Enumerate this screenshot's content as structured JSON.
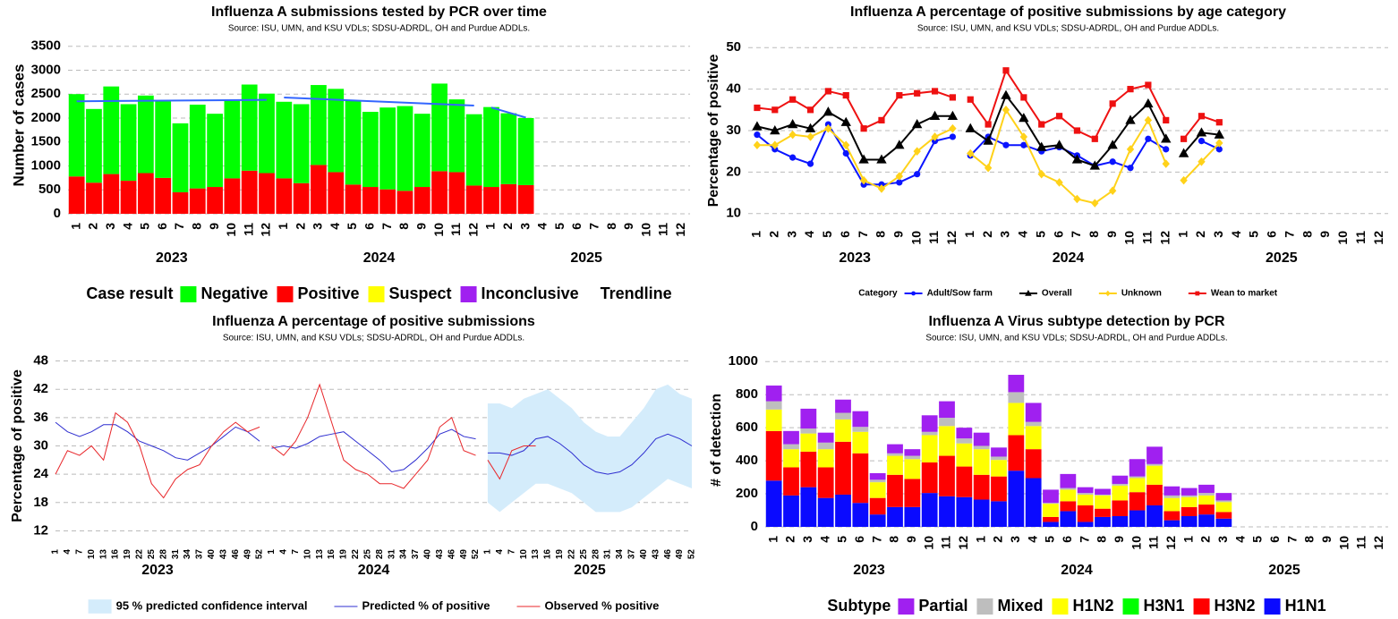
{
  "chart_data": [
    {
      "type": "stacked_bar",
      "title": "Influenza A submissions tested by PCR over time",
      "subtitle": "Source: ISU, UMN, and KSU VDLs; SDSU-ADRDL, OH and Purdue ADDLs.",
      "y_label": "Number of cases",
      "categories": [
        "1",
        "2",
        "3",
        "4",
        "5",
        "6",
        "7",
        "8",
        "9",
        "10",
        "11",
        "12",
        "1",
        "2",
        "3",
        "4",
        "5",
        "6",
        "7",
        "8",
        "9",
        "10",
        "11",
        "12",
        "1",
        "2",
        "3",
        "4",
        "5",
        "6",
        "7",
        "8",
        "9",
        "10",
        "11",
        "12"
      ],
      "groups": [
        "2023",
        "2024",
        "2025"
      ],
      "ylim": [
        0,
        3700
      ],
      "yticks": [
        0,
        500,
        1000,
        1500,
        2000,
        2500,
        3000,
        3500
      ],
      "grid": true,
      "legend": "bottom",
      "legend_title": "Case result",
      "series": [
        {
          "name": "Negative",
          "color": "#00ff00",
          "values": [
            1720,
            1540,
            1830,
            1600,
            1620,
            1600,
            1440,
            1750,
            1530,
            1620,
            1800,
            1660,
            1600,
            1650,
            1670,
            1740,
            1760,
            1570,
            1710,
            1770,
            1530,
            1830,
            1520,
            1490,
            1670,
            1480,
            1400,
            null,
            null,
            null,
            null,
            null,
            null,
            null,
            null,
            null
          ]
        },
        {
          "name": "Positive",
          "color": "#ff0000",
          "values": [
            780,
            650,
            830,
            690,
            850,
            750,
            450,
            530,
            560,
            740,
            900,
            850,
            740,
            640,
            1020,
            870,
            610,
            560,
            510,
            480,
            560,
            890,
            870,
            590,
            560,
            620,
            600,
            null,
            null,
            null,
            null,
            null,
            null,
            null,
            null,
            null
          ]
        },
        {
          "name": "Suspect",
          "color": "#ffff00",
          "values": [
            0,
            0,
            0,
            0,
            0,
            0,
            0,
            0,
            0,
            0,
            0,
            0,
            0,
            0,
            0,
            0,
            0,
            0,
            0,
            0,
            0,
            0,
            0,
            0,
            0,
            0,
            0,
            null,
            null,
            null,
            null,
            null,
            null,
            null,
            null,
            null
          ]
        },
        {
          "name": "Inconclusive",
          "color": "#a020f0",
          "values": [
            0,
            0,
            0,
            0,
            0,
            0,
            0,
            0,
            0,
            0,
            0,
            0,
            0,
            0,
            0,
            0,
            0,
            0,
            0,
            0,
            0,
            0,
            0,
            0,
            0,
            0,
            0,
            null,
            null,
            null,
            null,
            null,
            null,
            null,
            null,
            null
          ]
        }
      ],
      "trendline": {
        "name": "Trendline",
        "color": "#3366ff",
        "segments": [
          [
            2350,
            2380
          ],
          [
            2430,
            2260
          ],
          [
            2220,
            2010
          ]
        ]
      }
    },
    {
      "type": "line",
      "title": "Influenza A percentage of positive submissions by age category",
      "subtitle": "Source: ISU, UMN, and KSU VDLs; SDSU-ADRDL, OH and Purdue ADDLs.",
      "y_label": "Percentage of positive",
      "categories": [
        "1",
        "2",
        "3",
        "4",
        "5",
        "6",
        "7",
        "8",
        "9",
        "10",
        "11",
        "12",
        "1",
        "2",
        "3",
        "4",
        "5",
        "6",
        "7",
        "8",
        "9",
        "10",
        "11",
        "12",
        "1",
        "2",
        "3",
        "4",
        "5",
        "6",
        "7",
        "8",
        "9",
        "10",
        "11",
        "12"
      ],
      "groups": [
        "2023",
        "2024",
        "2025"
      ],
      "ylim": [
        8,
        52
      ],
      "yticks": [
        10,
        20,
        30,
        40,
        50
      ],
      "grid": true,
      "legend": "bottom",
      "legend_title": "Category",
      "series": [
        {
          "name": "Adult/Sow farm",
          "color": "#0a14ff",
          "marker": "circle",
          "values": [
            29,
            25.5,
            23.5,
            22,
            31.5,
            24.5,
            17,
            17,
            17.5,
            19.5,
            27.5,
            28.5,
            24,
            28.5,
            26.5,
            26.5,
            25,
            26,
            24,
            21.5,
            22.5,
            21,
            28,
            25.5,
            null,
            27.5,
            25.5,
            null,
            null,
            null,
            null,
            null,
            null,
            null,
            null,
            null
          ]
        },
        {
          "name": "Overall",
          "color": "#000000",
          "marker": "triangle",
          "values": [
            31,
            30,
            31.5,
            30.5,
            34.5,
            32,
            23,
            23,
            26.5,
            31.5,
            33.5,
            33.5,
            30.5,
            27.5,
            38.5,
            33,
            26,
            26.5,
            23,
            21.5,
            26.5,
            32.5,
            36.5,
            28,
            24.5,
            29.5,
            29,
            null,
            null,
            null,
            null,
            null,
            null,
            null,
            null,
            null
          ]
        },
        {
          "name": "Unknown",
          "color": "#ffd21a",
          "marker": "diamond",
          "values": [
            26.5,
            26.5,
            29,
            28.5,
            30.5,
            26.5,
            18,
            16,
            19,
            25,
            28.5,
            30.5,
            24.5,
            21,
            35,
            28.5,
            19.5,
            17.5,
            13.5,
            12.5,
            15.5,
            25.5,
            32.5,
            22,
            18,
            22.5,
            27,
            null,
            null,
            null,
            null,
            null,
            null,
            null,
            null,
            null
          ]
        },
        {
          "name": "Wean to market",
          "color": "#ee1111",
          "marker": "square",
          "values": [
            35.5,
            35,
            37.5,
            35,
            39.5,
            38.5,
            30.5,
            32.5,
            38.5,
            39,
            39.5,
            38,
            37.5,
            31.5,
            44.5,
            38,
            31.5,
            33.5,
            30,
            28,
            36.5,
            40,
            41,
            32.5,
            28,
            33.5,
            32,
            null,
            null,
            null,
            null,
            null,
            null,
            null,
            null,
            null
          ]
        }
      ]
    },
    {
      "type": "line",
      "title": "Influenza A percentage of positive submissions",
      "subtitle": "Source: ISU, UMN, and KSU VDLs; SDSU-ADRDL, OH and Purdue ADDLs.",
      "y_label": "Percentage of positive",
      "categories": [
        "1",
        "4",
        "7",
        "10",
        "13",
        "16",
        "19",
        "22",
        "25",
        "28",
        "31",
        "34",
        "37",
        "40",
        "43",
        "46",
        "49",
        "52",
        "1",
        "4",
        "7",
        "10",
        "13",
        "16",
        "19",
        "22",
        "25",
        "28",
        "31",
        "34",
        "37",
        "40",
        "43",
        "46",
        "49",
        "52",
        "1",
        "4",
        "7",
        "10",
        "13",
        "16",
        "19",
        "22",
        "25",
        "28",
        "31",
        "34",
        "37",
        "40",
        "43",
        "46",
        "49",
        "52"
      ],
      "groups": [
        "2023",
        "2024",
        "2025"
      ],
      "ylim": [
        10,
        50
      ],
      "yticks": [
        12,
        18,
        24,
        30,
        36,
        42,
        48
      ],
      "grid": true,
      "legend": "bottom",
      "series": [
        {
          "name": "95 % predicted confidence interval",
          "color": "#d4ecfb",
          "lower": [
            null,
            null,
            null,
            null,
            null,
            null,
            null,
            null,
            null,
            null,
            null,
            null,
            null,
            null,
            null,
            null,
            null,
            null,
            null,
            null,
            null,
            null,
            null,
            null,
            null,
            null,
            null,
            null,
            null,
            null,
            null,
            null,
            null,
            null,
            null,
            null,
            18,
            16,
            18,
            20,
            22,
            22,
            21,
            20,
            18,
            16,
            16,
            16,
            17,
            19,
            21,
            23,
            22,
            21
          ],
          "upper": [
            null,
            null,
            null,
            null,
            null,
            null,
            null,
            null,
            null,
            null,
            null,
            null,
            null,
            null,
            null,
            null,
            null,
            null,
            null,
            null,
            null,
            null,
            null,
            null,
            null,
            null,
            null,
            null,
            null,
            null,
            null,
            null,
            null,
            null,
            null,
            null,
            39,
            39,
            38,
            40,
            41,
            42,
            40,
            38,
            35,
            33,
            32,
            32,
            35,
            38,
            42,
            43,
            41,
            40
          ]
        },
        {
          "name": "Predicted % of positive",
          "color": "#2f2fd0",
          "values": [
            35,
            33,
            32,
            33,
            34.5,
            34.5,
            33,
            31,
            30,
            29,
            27.5,
            27,
            28.5,
            30,
            32,
            34,
            33,
            31,
            29.5,
            30,
            29.5,
            30.5,
            32,
            32.5,
            33,
            31,
            29,
            27,
            24.5,
            25,
            27,
            29.5,
            32.5,
            33.5,
            32,
            31.5,
            28.5,
            28.5,
            28,
            29,
            31.5,
            32,
            30.5,
            28.5,
            26,
            24.5,
            24,
            24.5,
            26,
            28.5,
            31.5,
            32.5,
            31.5,
            30
          ]
        },
        {
          "name": "Observed % positive",
          "color": "#e8262a",
          "values": [
            24,
            29,
            28,
            30,
            27,
            37,
            35,
            30,
            22,
            19,
            23,
            25,
            26,
            30,
            33,
            35,
            33,
            34,
            30,
            28,
            31,
            36,
            43,
            35,
            27,
            25,
            24,
            22,
            22,
            21,
            24,
            27,
            34,
            36,
            29,
            28,
            27,
            23,
            29,
            30,
            30,
            null,
            null,
            null,
            null,
            null,
            null,
            null,
            null,
            null,
            null,
            null,
            null,
            null
          ]
        }
      ]
    },
    {
      "type": "stacked_bar",
      "title": "Influenza A Virus subtype detection by PCR",
      "subtitle": "Source: ISU, UMN, and KSU VDLs; SDSU-ADRDL, OH and Purdue ADDLs.",
      "y_label": "# of detection",
      "categories": [
        "1",
        "2",
        "3",
        "4",
        "5",
        "6",
        "7",
        "8",
        "9",
        "10",
        "11",
        "12",
        "1",
        "2",
        "3",
        "4",
        "5",
        "6",
        "7",
        "8",
        "9",
        "10",
        "11",
        "12",
        "1",
        "2",
        "3",
        "4",
        "5",
        "6",
        "7",
        "8",
        "9",
        "10",
        "11",
        "12"
      ],
      "groups": [
        "2023",
        "2024",
        "2025"
      ],
      "ylim": [
        0,
        1050
      ],
      "yticks": [
        0,
        200,
        400,
        600,
        800,
        1000
      ],
      "grid": true,
      "legend": "bottom",
      "legend_title": "Subtype",
      "series": [
        {
          "name": "Partial",
          "color": "#a020f0",
          "values": [
            95,
            80,
            120,
            60,
            80,
            95,
            40,
            55,
            40,
            100,
            100,
            65,
            80,
            55,
            105,
            115,
            80,
            85,
            35,
            35,
            50,
            105,
            105,
            55,
            45,
            50,
            45,
            null,
            null,
            null,
            null,
            null,
            null,
            null,
            null,
            null
          ]
        },
        {
          "name": "Mixed",
          "color": "#bebebe",
          "values": [
            50,
            30,
            30,
            40,
            40,
            30,
            15,
            15,
            20,
            20,
            50,
            30,
            20,
            20,
            65,
            25,
            5,
            10,
            10,
            5,
            10,
            10,
            10,
            15,
            10,
            15,
            10,
            null,
            null,
            null,
            null,
            null,
            null,
            null,
            null,
            null
          ]
        },
        {
          "name": "H1N2",
          "color": "#ffff00",
          "values": [
            130,
            110,
            110,
            110,
            135,
            130,
            95,
            115,
            120,
            165,
            180,
            140,
            155,
            100,
            195,
            140,
            80,
            70,
            65,
            80,
            90,
            85,
            115,
            80,
            60,
            55,
            60,
            null,
            null,
            null,
            null,
            null,
            null,
            null,
            null,
            null
          ]
        },
        {
          "name": "H3N1",
          "color": "#00ff00",
          "values": [
            0,
            0,
            0,
            0,
            0,
            0,
            0,
            0,
            0,
            0,
            0,
            0,
            0,
            0,
            0,
            0,
            0,
            0,
            0,
            0,
            0,
            0,
            0,
            0,
            0,
            0,
            0,
            null,
            null,
            null,
            null,
            null,
            null,
            null,
            null,
            null
          ]
        },
        {
          "name": "H3N2",
          "color": "#ff0000",
          "values": [
            300,
            170,
            215,
            185,
            320,
            300,
            100,
            195,
            170,
            185,
            245,
            185,
            150,
            150,
            215,
            175,
            30,
            60,
            100,
            50,
            95,
            110,
            125,
            55,
            55,
            60,
            40,
            null,
            null,
            null,
            null,
            null,
            null,
            null,
            null,
            null
          ]
        },
        {
          "name": "H1N1",
          "color": "#0a0aff",
          "values": [
            280,
            190,
            240,
            175,
            195,
            145,
            75,
            120,
            120,
            205,
            185,
            180,
            165,
            155,
            340,
            295,
            30,
            95,
            30,
            60,
            65,
            100,
            130,
            40,
            65,
            75,
            50,
            null,
            null,
            null,
            null,
            null,
            null,
            null,
            null,
            null
          ]
        }
      ]
    }
  ]
}
